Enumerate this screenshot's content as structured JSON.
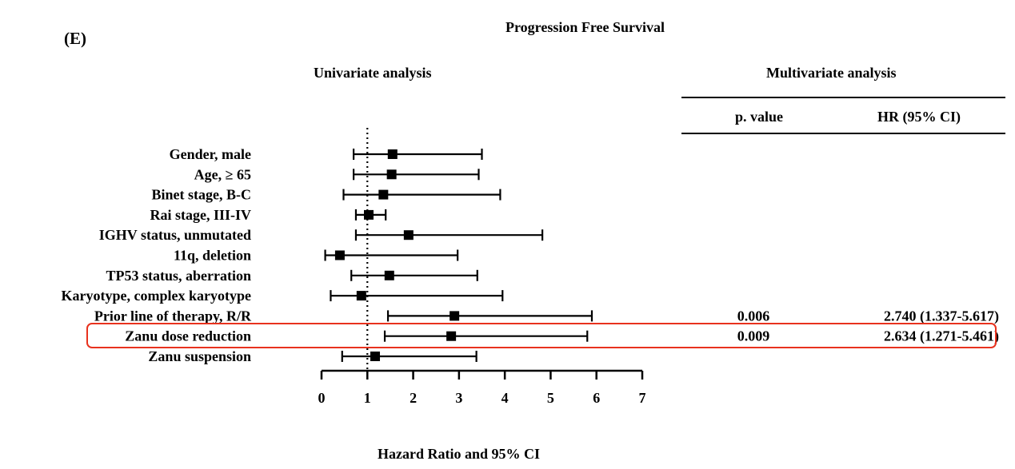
{
  "panel_label": "(E)",
  "title": "Progression Free Survival",
  "univariate_heading": "Univariate analysis",
  "multivariate_heading": "Multivariate analysis",
  "table_headers": {
    "p_value": "p. value",
    "hr": "HR (95% CI)"
  },
  "highlight_color": "#e8321e",
  "chart_data": {
    "type": "forest",
    "xlabel": "Hazard Ratio and 95% CI",
    "xlim": [
      0,
      7
    ],
    "xticks": [
      0,
      1,
      2,
      3,
      4,
      5,
      6,
      7
    ],
    "reference_line": 1,
    "highlighted_row": "Zanu dose reduction",
    "rows": [
      {
        "label": "Gender, male",
        "hr": 1.55,
        "lo": 0.7,
        "hi": 3.5
      },
      {
        "label": "Age, ≥ 65",
        "hr": 1.53,
        "lo": 0.7,
        "hi": 3.43
      },
      {
        "label": "Binet stage, B-C",
        "hr": 1.35,
        "lo": 0.48,
        "hi": 3.9
      },
      {
        "label": "Rai stage, III-IV",
        "hr": 1.03,
        "lo": 0.75,
        "hi": 1.4
      },
      {
        "label": "IGHV status, unmutated",
        "hr": 1.9,
        "lo": 0.75,
        "hi": 4.82
      },
      {
        "label": "11q, deletion",
        "hr": 0.4,
        "lo": 0.08,
        "hi": 2.97
      },
      {
        "label": "TP53 status, aberration",
        "hr": 1.48,
        "lo": 0.65,
        "hi": 3.4
      },
      {
        "label": "Karyotype, complex karyotype",
        "hr": 0.87,
        "lo": 0.2,
        "hi": 3.95
      },
      {
        "label": "Prior line of therapy, R/R",
        "hr": 2.9,
        "lo": 1.45,
        "hi": 5.9,
        "p_value": "0.006",
        "hr_ci": "2.740 (1.337-5.617)"
      },
      {
        "label": "Zanu dose reduction",
        "hr": 2.83,
        "lo": 1.38,
        "hi": 5.8,
        "p_value": "0.009",
        "hr_ci": "2.634 (1.271-5.461)"
      },
      {
        "label": "Zanu suspension",
        "hr": 1.17,
        "lo": 0.45,
        "hi": 3.38
      }
    ]
  }
}
